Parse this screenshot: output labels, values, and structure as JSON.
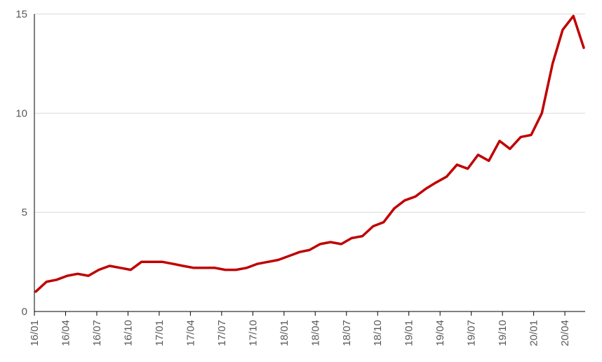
{
  "chart_data": {
    "type": "line",
    "title": "",
    "xlabel": "",
    "ylabel": "",
    "ylim": [
      0,
      15
    ],
    "y_ticks": [
      "0",
      "5",
      "10",
      "15"
    ],
    "x_ticks": [
      "16/01",
      "16/04",
      "16/07",
      "16/10",
      "17/01",
      "17/04",
      "17/07",
      "17/10",
      "18/01",
      "18/04",
      "18/07",
      "18/10",
      "19/01",
      "19/04",
      "19/07",
      "19/10",
      "20/01",
      "20/04"
    ],
    "grid": "horizontal",
    "legend": "none",
    "line_color": "#c00000",
    "series": [
      {
        "x": [
          "2016-01",
          "2016-02",
          "2016-03",
          "2016-04",
          "2016-05",
          "2016-06",
          "2016-07",
          "2016-08",
          "2016-09",
          "2016-10",
          "2016-11",
          "2016-12",
          "2017-01",
          "2017-02",
          "2017-03",
          "2017-04",
          "2017-05",
          "2017-06",
          "2017-07",
          "2017-08",
          "2017-09",
          "2017-10",
          "2017-11",
          "2017-12",
          "2018-01",
          "2018-02",
          "2018-03",
          "2018-04",
          "2018-05",
          "2018-06",
          "2018-07",
          "2018-08",
          "2018-09",
          "2018-10",
          "2018-11",
          "2018-12",
          "2019-01",
          "2019-02",
          "2019-03",
          "2019-04",
          "2019-05",
          "2019-06",
          "2019-07",
          "2019-08",
          "2019-09",
          "2019-10",
          "2019-11",
          "2019-12",
          "2020-01",
          "2020-02",
          "2020-03",
          "2020-04",
          "2020-05"
        ],
        "values": [
          1.0,
          1.5,
          1.6,
          1.8,
          1.9,
          1.8,
          2.1,
          2.3,
          2.2,
          2.1,
          2.5,
          2.5,
          2.5,
          2.4,
          2.3,
          2.2,
          2.2,
          2.2,
          2.1,
          2.1,
          2.2,
          2.4,
          2.5,
          2.6,
          2.8,
          3.0,
          3.1,
          3.4,
          3.5,
          3.4,
          3.7,
          3.8,
          4.3,
          4.5,
          5.2,
          5.6,
          5.8,
          6.2,
          6.5,
          6.8,
          7.4,
          7.2,
          7.9,
          7.6,
          8.6,
          8.2,
          8.8,
          8.9,
          10.0,
          12.5,
          14.2,
          14.9,
          13.3
        ]
      }
    ]
  }
}
